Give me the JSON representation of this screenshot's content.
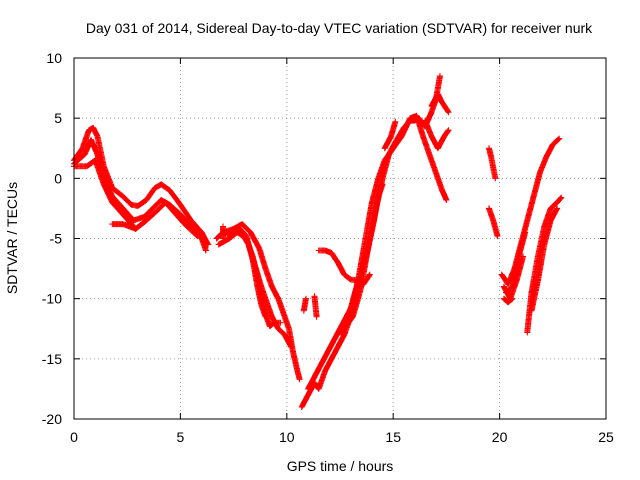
{
  "chart_data": {
    "type": "scatter",
    "title": "Day 031 of 2014, Sidereal Day-to-day VTEC variation (SDTVAR) for receiver nurk",
    "xlabel": "GPS time / hours",
    "ylabel": "SDTVAR / TECUs",
    "xlim": [
      0,
      25
    ],
    "ylim": [
      -20,
      10
    ],
    "xticks": [
      0,
      5,
      10,
      15,
      20,
      25
    ],
    "yticks": [
      -20,
      -15,
      -10,
      -5,
      0,
      5,
      10
    ],
    "grid": true,
    "marker": "plus",
    "series": [
      {
        "color": "#ff0000",
        "tracks": [
          [
            [
              0.0,
              1.5
            ],
            [
              0.4,
              2.5
            ],
            [
              0.7,
              4.0
            ],
            [
              0.9,
              4.2
            ],
            [
              1.1,
              3.5
            ],
            [
              1.4,
              1.0
            ],
            [
              1.8,
              -0.8
            ],
            [
              2.3,
              -1.5
            ],
            [
              2.7,
              -2.2
            ],
            [
              3.0,
              -2.3
            ],
            [
              3.4,
              -1.8
            ],
            [
              3.8,
              -0.8
            ],
            [
              4.1,
              -0.5
            ],
            [
              4.5,
              -1.0
            ],
            [
              5.0,
              -2.2
            ],
            [
              5.5,
              -3.5
            ],
            [
              6.0,
              -4.5
            ],
            [
              6.3,
              -5.5
            ]
          ],
          [
            [
              0.0,
              1.2
            ],
            [
              0.5,
              2.0
            ],
            [
              0.8,
              3.2
            ],
            [
              1.1,
              2.0
            ],
            [
              1.4,
              0.0
            ],
            [
              1.8,
              -1.5
            ],
            [
              2.3,
              -2.5
            ],
            [
              2.8,
              -3.5
            ],
            [
              3.3,
              -3.2
            ],
            [
              3.7,
              -2.5
            ],
            [
              4.1,
              -1.8
            ],
            [
              4.5,
              -2.2
            ],
            [
              5.0,
              -3.0
            ],
            [
              5.5,
              -4.0
            ],
            [
              6.0,
              -5.0
            ],
            [
              6.2,
              -6.0
            ]
          ],
          [
            [
              0.0,
              1.0
            ],
            [
              0.6,
              1.0
            ],
            [
              1.0,
              1.5
            ],
            [
              1.4,
              -0.5
            ],
            [
              1.8,
              -2.0
            ],
            [
              2.4,
              -3.2
            ],
            [
              2.9,
              -4.2
            ],
            [
              3.4,
              -3.5
            ],
            [
              3.9,
              -2.7
            ],
            [
              4.3,
              -2.0
            ],
            [
              4.7,
              -2.8
            ],
            [
              5.2,
              -3.8
            ],
            [
              5.8,
              -4.8
            ]
          ],
          [
            [
              1.8,
              -3.8
            ],
            [
              2.3,
              -3.8
            ],
            [
              2.9,
              -4.2
            ]
          ],
          [
            [
              6.7,
              -5.0
            ],
            [
              7.0,
              -4.5
            ],
            [
              7.5,
              -4.2
            ],
            [
              7.9,
              -3.8
            ],
            [
              8.3,
              -4.5
            ],
            [
              8.7,
              -5.8
            ],
            [
              9.0,
              -7.5
            ],
            [
              9.3,
              -9.0
            ],
            [
              9.6,
              -10.0
            ],
            [
              9.8,
              -11.0
            ],
            [
              10.1,
              -12.5
            ],
            [
              10.3,
              -14.5
            ],
            [
              10.5,
              -16.0
            ],
            [
              10.6,
              -16.7
            ]
          ],
          [
            [
              6.8,
              -5.5
            ],
            [
              7.3,
              -5.0
            ],
            [
              7.8,
              -4.3
            ],
            [
              8.2,
              -5.5
            ],
            [
              8.5,
              -7.2
            ],
            [
              8.8,
              -9.0
            ],
            [
              9.1,
              -10.5
            ],
            [
              9.3,
              -11.5
            ],
            [
              9.6,
              -12.5
            ],
            [
              9.9,
              -13.0
            ],
            [
              10.2,
              -14.0
            ]
          ],
          [
            [
              7.2,
              -4.7
            ],
            [
              7.7,
              -4.5
            ],
            [
              8.1,
              -5.0
            ],
            [
              8.4,
              -6.5
            ],
            [
              8.6,
              -8.0
            ],
            [
              8.8,
              -9.8
            ],
            [
              9.0,
              -11.3
            ],
            [
              9.2,
              -12.3
            ],
            [
              9.4,
              -12.0
            ],
            [
              9.7,
              -12.0
            ]
          ],
          [
            [
              7.8,
              -4.2
            ],
            [
              8.1,
              -4.8
            ],
            [
              8.4,
              -6.8
            ],
            [
              8.6,
              -8.8
            ],
            [
              8.8,
              -10.5
            ],
            [
              9.0,
              -11.5
            ]
          ],
          [
            [
              7.0,
              -5.0
            ],
            [
              7.0,
              -4.0
            ]
          ],
          [
            [
              10.7,
              -19.0
            ],
            [
              11.0,
              -18.0
            ],
            [
              11.3,
              -17.0
            ],
            [
              11.5,
              -17.5
            ],
            [
              11.8,
              -16.0
            ],
            [
              12.1,
              -15.0
            ],
            [
              12.4,
              -14.0
            ],
            [
              12.7,
              -13.0
            ],
            [
              12.9,
              -12.0
            ],
            [
              13.1,
              -11.5
            ],
            [
              13.3,
              -10.3
            ],
            [
              13.5,
              -9.0
            ],
            [
              13.7,
              -7.0
            ],
            [
              13.9,
              -5.0
            ],
            [
              14.2,
              -2.5
            ],
            [
              14.5,
              0.0
            ],
            [
              14.8,
              2.0
            ],
            [
              15.1,
              3.0
            ],
            [
              15.5,
              4.2
            ],
            [
              15.8,
              4.8
            ],
            [
              16.0,
              4.8
            ],
            [
              16.2,
              5.0
            ],
            [
              16.5,
              4.3
            ],
            [
              16.8,
              5.5
            ],
            [
              17.0,
              6.5
            ],
            [
              17.2,
              8.5
            ]
          ],
          [
            [
              11.0,
              -17.5
            ],
            [
              11.3,
              -16.5
            ],
            [
              11.6,
              -15.5
            ],
            [
              11.9,
              -14.5
            ],
            [
              12.2,
              -13.5
            ],
            [
              12.5,
              -12.5
            ],
            [
              12.8,
              -11.5
            ],
            [
              13.1,
              -10.5
            ],
            [
              13.4,
              -8.0
            ],
            [
              13.7,
              -5.0
            ],
            [
              14.0,
              -2.0
            ],
            [
              14.3,
              0.0
            ],
            [
              14.6,
              1.5
            ],
            [
              15.0,
              2.5
            ],
            [
              15.4,
              3.5
            ],
            [
              15.8,
              5.0
            ],
            [
              16.1,
              5.2
            ],
            [
              16.4,
              3.5
            ],
            [
              16.7,
              2.0
            ],
            [
              17.0,
              0.5
            ],
            [
              17.3,
              -1.0
            ],
            [
              17.5,
              -1.8
            ]
          ],
          [
            [
              12.6,
              -13.0
            ],
            [
              12.9,
              -11.5
            ],
            [
              13.2,
              -9.5
            ],
            [
              13.5,
              -8.0
            ],
            [
              13.8,
              -6.0
            ],
            [
              14.1,
              -3.5
            ],
            [
              14.3,
              -1.5
            ],
            [
              14.5,
              -0.5
            ]
          ],
          [
            [
              11.3,
              -9.8
            ],
            [
              11.4,
              -11.5
            ]
          ],
          [
            [
              10.8,
              -11.0
            ],
            [
              10.9,
              -10.0
            ]
          ],
          [
            [
              11.5,
              -6.0
            ],
            [
              11.8,
              -6.0
            ],
            [
              12.1,
              -6.2
            ],
            [
              12.4,
              -7.0
            ],
            [
              12.7,
              -8.0
            ],
            [
              13.0,
              -8.4
            ],
            [
              13.3,
              -8.5
            ],
            [
              13.6,
              -8.8
            ],
            [
              13.9,
              -8.0
            ]
          ],
          [
            [
              14.6,
              2.5
            ],
            [
              14.9,
              3.5
            ],
            [
              15.1,
              4.7
            ]
          ],
          [
            [
              16.8,
              6.0
            ],
            [
              17.1,
              7.0
            ],
            [
              17.3,
              6.3
            ],
            [
              17.6,
              5.5
            ]
          ],
          [
            [
              16.5,
              4.8
            ],
            [
              16.8,
              3.5
            ],
            [
              17.1,
              2.5
            ],
            [
              17.4,
              3.5
            ],
            [
              17.6,
              4.0
            ]
          ],
          [
            [
              19.5,
              2.5
            ],
            [
              19.6,
              1.8
            ],
            [
              19.8,
              0.0
            ]
          ],
          [
            [
              19.5,
              -2.5
            ],
            [
              19.7,
              -3.5
            ],
            [
              19.9,
              -4.8
            ]
          ],
          [
            [
              20.1,
              -8.0
            ],
            [
              20.4,
              -8.8
            ],
            [
              20.7,
              -7.5
            ],
            [
              21.0,
              -5.5
            ],
            [
              21.3,
              -3.5
            ],
            [
              21.6,
              -1.5
            ],
            [
              21.9,
              0.5
            ],
            [
              22.2,
              1.8
            ],
            [
              22.5,
              2.8
            ],
            [
              22.8,
              3.3
            ]
          ],
          [
            [
              20.2,
              -9.0
            ],
            [
              20.5,
              -10.0
            ],
            [
              20.8,
              -8.5
            ],
            [
              21.1,
              -6.5
            ]
          ],
          [
            [
              20.3,
              -9.5
            ],
            [
              20.6,
              -9.0
            ],
            [
              20.9,
              -6.5
            ],
            [
              21.2,
              -4.5
            ]
          ],
          [
            [
              20.2,
              -10.0
            ],
            [
              20.4,
              -10.3
            ],
            [
              20.6,
              -10.0
            ]
          ],
          [
            [
              21.3,
              -12.8
            ],
            [
              21.5,
              -9.5
            ],
            [
              21.8,
              -6.5
            ],
            [
              22.1,
              -4.0
            ],
            [
              22.4,
              -2.5
            ],
            [
              22.7,
              -2.0
            ],
            [
              22.9,
              -1.6
            ]
          ],
          [
            [
              21.5,
              -11.0
            ],
            [
              21.8,
              -8.5
            ],
            [
              22.1,
              -5.5
            ],
            [
              22.4,
              -3.5
            ],
            [
              22.7,
              -2.5
            ]
          ]
        ]
      }
    ]
  }
}
